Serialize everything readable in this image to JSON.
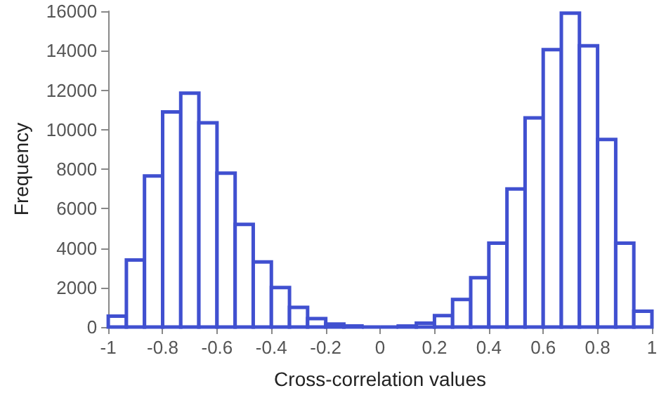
{
  "chart_data": {
    "type": "histogram",
    "xlabel": "Cross-correlation values",
    "ylabel": "Frequency",
    "color": "#4050d0",
    "bins": [
      -1,
      -0.9333,
      -0.8667,
      -0.8,
      -0.7333,
      -0.6667,
      -0.6,
      -0.5333,
      -0.4667,
      -0.4,
      -0.3333,
      -0.2667,
      -0.2,
      -0.1333,
      -0.0667,
      0,
      0.0667,
      0.1333,
      0.2,
      0.2667,
      0.3333,
      0.4,
      0.4667,
      0.5333,
      0.6,
      0.6667,
      0.7333,
      0.8,
      0.8667,
      0.9333,
      1
    ],
    "values": [
      550,
      3400,
      7650,
      10900,
      11850,
      10350,
      7800,
      5200,
      3300,
      2000,
      1000,
      430,
      150,
      50,
      0,
      0,
      50,
      200,
      580,
      1400,
      2500,
      4250,
      7000,
      10600,
      14050,
      15900,
      14250,
      9500,
      4250,
      800
    ],
    "xlim": [
      -1,
      1
    ],
    "xticks": [
      -1,
      -0.8,
      -0.6,
      -0.4,
      -0.2,
      0,
      0.2,
      0.4,
      0.6,
      0.8,
      1
    ],
    "ylim": [
      0,
      16000
    ],
    "yticks": [
      0,
      2000,
      4000,
      6000,
      8000,
      10000,
      12000,
      14000,
      16000
    ],
    "grid": false
  }
}
